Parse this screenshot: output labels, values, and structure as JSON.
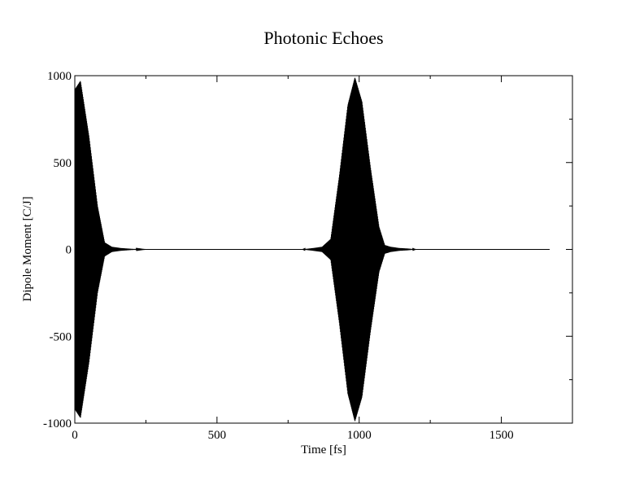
{
  "chart_data": {
    "type": "line",
    "title": "Photonic Echoes",
    "xlabel": "Time [fs]",
    "ylabel": "Dipole Moment [C/J]",
    "xlim": [
      0,
      1750
    ],
    "ylim": [
      -1000,
      1000
    ],
    "x_ticks": [
      0,
      500,
      1000,
      1500
    ],
    "x_tick_labels": [
      "0",
      "500",
      "1000",
      "1500"
    ],
    "y_ticks": [
      -1000,
      -500,
      0,
      500,
      1000
    ],
    "y_tick_labels": [
      "-1000",
      "-500",
      "0",
      "500",
      "1000"
    ],
    "grid": false,
    "series": [
      {
        "x": [
          0,
          20,
          50,
          80,
          105,
          130,
          160,
          200,
          250,
          800,
          840,
          870,
          900,
          930,
          960,
          985,
          1010,
          1040,
          1070,
          1090,
          1110,
          1140,
          1170,
          1200,
          1670
        ],
        "amp": [
          920,
          970,
          650,
          250,
          40,
          15,
          8,
          3,
          0,
          0,
          8,
          15,
          60,
          420,
          830,
          990,
          850,
          470,
          130,
          25,
          15,
          8,
          5,
          0,
          0
        ]
      }
    ],
    "line_color": "#000000"
  }
}
